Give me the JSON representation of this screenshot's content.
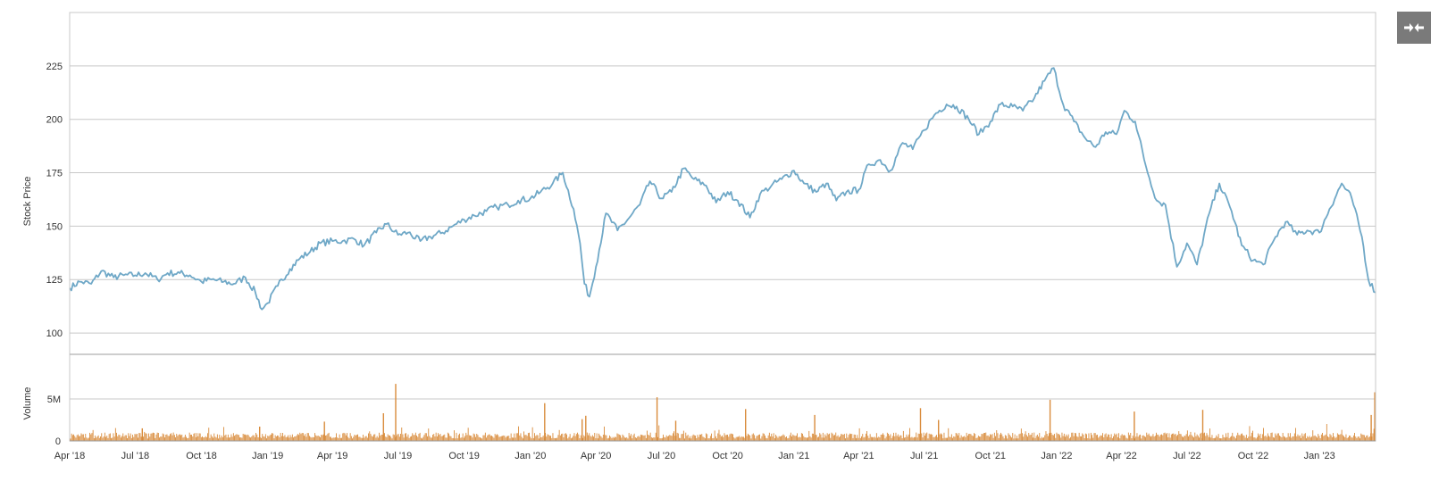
{
  "chart_data": {
    "type": "line",
    "price_panel": {
      "ylabel": "Stock Price",
      "ylim": [
        90,
        250
      ],
      "yticks": [
        100,
        125,
        150,
        175,
        200,
        225
      ],
      "series": [
        {
          "color": "#6fa8c7",
          "points": [
            [
              "2018-04-01",
              121
            ],
            [
              "2018-04-15",
              124
            ],
            [
              "2018-05-01",
              123
            ],
            [
              "2018-05-15",
              129
            ],
            [
              "2018-06-01",
              126
            ],
            [
              "2018-06-15",
              127
            ],
            [
              "2018-07-01",
              127
            ],
            [
              "2018-07-15",
              128
            ],
            [
              "2018-08-01",
              125
            ],
            [
              "2018-08-15",
              128
            ],
            [
              "2018-09-01",
              128
            ],
            [
              "2018-09-15",
              127
            ],
            [
              "2018-10-01",
              124
            ],
            [
              "2018-10-15",
              125
            ],
            [
              "2018-11-01",
              124
            ],
            [
              "2018-11-15",
              123
            ],
            [
              "2018-12-01",
              126
            ],
            [
              "2018-12-15",
              119
            ],
            [
              "2018-12-24",
              111
            ],
            [
              "2019-01-01",
              114
            ],
            [
              "2019-01-15",
              122
            ],
            [
              "2019-02-01",
              130
            ],
            [
              "2019-02-15",
              135
            ],
            [
              "2019-03-01",
              138
            ],
            [
              "2019-03-15",
              142
            ],
            [
              "2019-04-01",
              143
            ],
            [
              "2019-04-15",
              143
            ],
            [
              "2019-05-01",
              144
            ],
            [
              "2019-05-15",
              141
            ],
            [
              "2019-06-01",
              147
            ],
            [
              "2019-06-15",
              151
            ],
            [
              "2019-07-01",
              146
            ],
            [
              "2019-07-15",
              147
            ],
            [
              "2019-08-01",
              143
            ],
            [
              "2019-08-15",
              145
            ],
            [
              "2019-09-01",
              147
            ],
            [
              "2019-09-15",
              150
            ],
            [
              "2019-10-01",
              153
            ],
            [
              "2019-10-15",
              155
            ],
            [
              "2019-11-01",
              157
            ],
            [
              "2019-11-15",
              159
            ],
            [
              "2019-12-01",
              160
            ],
            [
              "2019-12-15",
              162
            ],
            [
              "2020-01-01",
              163
            ],
            [
              "2020-01-15",
              166
            ],
            [
              "2020-02-01",
              170
            ],
            [
              "2020-02-15",
              175
            ],
            [
              "2020-03-01",
              158
            ],
            [
              "2020-03-10",
              142
            ],
            [
              "2020-03-16",
              123
            ],
            [
              "2020-03-23",
              117
            ],
            [
              "2020-04-01",
              131
            ],
            [
              "2020-04-15",
              156
            ],
            [
              "2020-05-01",
              148
            ],
            [
              "2020-05-15",
              153
            ],
            [
              "2020-06-01",
              160
            ],
            [
              "2020-06-15",
              171
            ],
            [
              "2020-07-01",
              163
            ],
            [
              "2020-07-15",
              166
            ],
            [
              "2020-08-01",
              177
            ],
            [
              "2020-08-15",
              172
            ],
            [
              "2020-09-01",
              169
            ],
            [
              "2020-09-15",
              161
            ],
            [
              "2020-10-01",
              166
            ],
            [
              "2020-10-15",
              162
            ],
            [
              "2020-11-01",
              154
            ],
            [
              "2020-11-15",
              165
            ],
            [
              "2020-12-01",
              169
            ],
            [
              "2020-12-15",
              172
            ],
            [
              "2021-01-01",
              176
            ],
            [
              "2021-01-15",
              170
            ],
            [
              "2021-02-01",
              166
            ],
            [
              "2021-02-15",
              170
            ],
            [
              "2021-03-01",
              162
            ],
            [
              "2021-03-15",
              166
            ],
            [
              "2021-04-01",
              167
            ],
            [
              "2021-04-15",
              179
            ],
            [
              "2021-05-01",
              181
            ],
            [
              "2021-05-15",
              176
            ],
            [
              "2021-06-01",
              189
            ],
            [
              "2021-06-15",
              186
            ],
            [
              "2021-07-01",
              195
            ],
            [
              "2021-07-15",
              202
            ],
            [
              "2021-08-01",
              207
            ],
            [
              "2021-08-15",
              206
            ],
            [
              "2021-09-01",
              200
            ],
            [
              "2021-09-15",
              193
            ],
            [
              "2021-10-01",
              199
            ],
            [
              "2021-10-15",
              207
            ],
            [
              "2021-11-01",
              206
            ],
            [
              "2021-11-15",
              204
            ],
            [
              "2021-12-01",
              210
            ],
            [
              "2021-12-15",
              218
            ],
            [
              "2021-12-28",
              224
            ],
            [
              "2022-01-10",
              207
            ],
            [
              "2022-01-25",
              199
            ],
            [
              "2022-02-10",
              191
            ],
            [
              "2022-02-24",
              187
            ],
            [
              "2022-03-10",
              194
            ],
            [
              "2022-03-25",
              193
            ],
            [
              "2022-04-05",
              204
            ],
            [
              "2022-04-20",
              199
            ],
            [
              "2022-05-05",
              178
            ],
            [
              "2022-05-20",
              162
            ],
            [
              "2022-06-01",
              160
            ],
            [
              "2022-06-17",
              131
            ],
            [
              "2022-07-01",
              142
            ],
            [
              "2022-07-15",
              132
            ],
            [
              "2022-08-01",
              156
            ],
            [
              "2022-08-15",
              170
            ],
            [
              "2022-09-01",
              157
            ],
            [
              "2022-09-15",
              141
            ],
            [
              "2022-10-01",
              134
            ],
            [
              "2022-10-15",
              132
            ],
            [
              "2022-11-01",
              145
            ],
            [
              "2022-11-15",
              152
            ],
            [
              "2022-12-01",
              146
            ],
            [
              "2022-12-15",
              148
            ],
            [
              "2023-01-01",
              147
            ],
            [
              "2023-01-15",
              158
            ],
            [
              "2023-02-01",
              170
            ],
            [
              "2023-02-15",
              163
            ],
            [
              "2023-03-01",
              145
            ],
            [
              "2023-03-10",
              125
            ],
            [
              "2023-03-20",
              119
            ]
          ]
        }
      ]
    },
    "volume_panel": {
      "ylabel": "Volume",
      "yticks": [
        0,
        5000000
      ],
      "ytick_labels": [
        "0",
        "5M"
      ],
      "ylim": [
        0,
        10000000
      ],
      "color": "#d98c3c",
      "base_volume": 800000,
      "spikes": [
        [
          "2018-07-10",
          1500000
        ],
        [
          "2018-12-20",
          1700000
        ],
        [
          "2019-03-20",
          2300000
        ],
        [
          "2019-06-10",
          3300000
        ],
        [
          "2019-06-27",
          6800000
        ],
        [
          "2020-01-20",
          4500000
        ],
        [
          "2020-03-12",
          2600000
        ],
        [
          "2020-03-17",
          3000000
        ],
        [
          "2020-06-24",
          5200000
        ],
        [
          "2020-07-20",
          2400000
        ],
        [
          "2020-10-25",
          3800000
        ],
        [
          "2021-01-29",
          3100000
        ],
        [
          "2021-06-25",
          3900000
        ],
        [
          "2021-07-20",
          2500000
        ],
        [
          "2021-12-22",
          4900000
        ],
        [
          "2022-04-18",
          3500000
        ],
        [
          "2022-07-22",
          3700000
        ],
        [
          "2023-03-13",
          3100000
        ],
        [
          "2023-03-18",
          5800000
        ]
      ]
    },
    "x_axis": {
      "type": "date",
      "range": [
        "2018-04-01",
        "2023-03-20"
      ],
      "ticks": [
        {
          "date": "2018-04-01",
          "label": "Apr '18"
        },
        {
          "date": "2018-07-01",
          "label": "Jul '18"
        },
        {
          "date": "2018-10-01",
          "label": "Oct '18"
        },
        {
          "date": "2019-01-01",
          "label": "Jan '19"
        },
        {
          "date": "2019-04-01",
          "label": "Apr '19"
        },
        {
          "date": "2019-07-01",
          "label": "Jul '19"
        },
        {
          "date": "2019-10-01",
          "label": "Oct '19"
        },
        {
          "date": "2020-01-01",
          "label": "Jan '20"
        },
        {
          "date": "2020-04-01",
          "label": "Apr '20"
        },
        {
          "date": "2020-07-01",
          "label": "Jul '20"
        },
        {
          "date": "2020-10-01",
          "label": "Oct '20"
        },
        {
          "date": "2021-01-01",
          "label": "Jan '21"
        },
        {
          "date": "2021-04-01",
          "label": "Apr '21"
        },
        {
          "date": "2021-07-01",
          "label": "Jul '21"
        },
        {
          "date": "2021-10-01",
          "label": "Oct '21"
        },
        {
          "date": "2022-01-01",
          "label": "Jan '22"
        },
        {
          "date": "2022-04-01",
          "label": "Apr '22"
        },
        {
          "date": "2022-07-01",
          "label": "Jul '22"
        },
        {
          "date": "2022-10-01",
          "label": "Oct '22"
        },
        {
          "date": "2023-01-01",
          "label": "Jan '23"
        }
      ]
    },
    "grid": true,
    "controls": {
      "collapse_icon": "collapse-arrows-icon",
      "collapse_button_color": "#7a7a7a"
    }
  }
}
